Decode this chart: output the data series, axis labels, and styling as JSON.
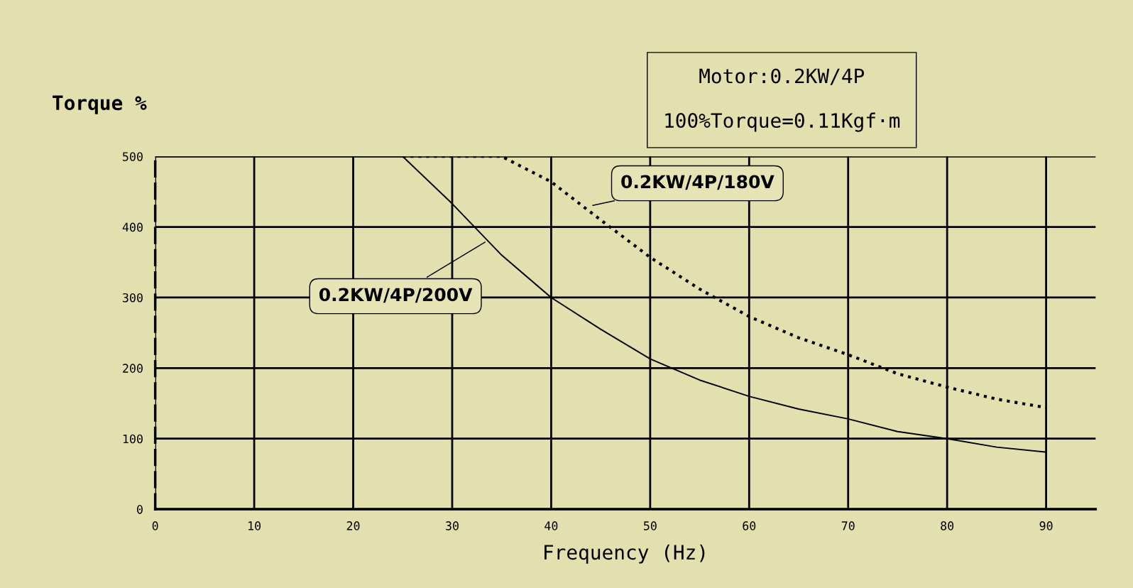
{
  "chart_data": {
    "type": "line",
    "xlabel": "Frequency (Hz)",
    "ylabel": "Torque %",
    "annotations": [
      "Motor:0.2KW/4P",
      "100%Torque=0.11Kgf·m"
    ],
    "xlim": [
      0,
      95
    ],
    "xticks": [
      0,
      10,
      20,
      30,
      40,
      50,
      60,
      70,
      80,
      90
    ],
    "ylim": [
      0,
      500
    ],
    "yticks": [
      0,
      100,
      200,
      300,
      400,
      500
    ],
    "grid": true,
    "marker": "none",
    "series": [
      {
        "name": "0.2KW/4P/200V",
        "color": "#000000",
        "line_style": "solid",
        "x": [
          0,
          25,
          30,
          35,
          40,
          45,
          50,
          55,
          60,
          65,
          70,
          75,
          80,
          85,
          90
        ],
        "values": [
          500,
          500,
          433,
          360,
          300,
          255,
          213,
          183,
          160,
          142,
          128,
          110,
          100,
          88,
          81
        ]
      },
      {
        "name": "0.2KW/4P/180V",
        "color": "#000000",
        "line_style": "dotted",
        "x": [
          25,
          35,
          40,
          45,
          50,
          55,
          60,
          65,
          70,
          75,
          80,
          85,
          90
        ],
        "values": [
          500,
          500,
          464,
          410,
          357,
          312,
          273,
          243,
          219,
          192,
          173,
          156,
          144
        ]
      }
    ]
  }
}
